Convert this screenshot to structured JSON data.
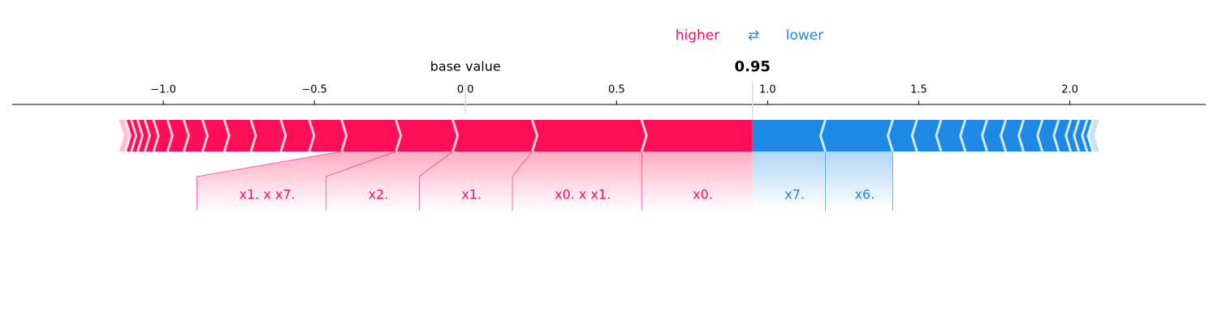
{
  "chart_data": {
    "type": "force",
    "higher_label": "higher",
    "switch_label": "⇄",
    "lower_label": "lower",
    "base_value_label": "base value",
    "base_value": 0,
    "output_value": 0.95,
    "xlim": [
      -1.5,
      2.45
    ],
    "xticks": [
      {
        "value": -1,
        "label": "−1.0"
      },
      {
        "value": -0.5,
        "label": "−0.5"
      },
      {
        "value": 0,
        "label": "0.0"
      },
      0.5,
      {
        "value": 1,
        "label": "1.0"
      },
      1.5,
      {
        "value": 2,
        "label": "2.0"
      }
    ],
    "series": [
      {
        "name": "higher",
        "color": "#ff0d57",
        "features": [
          "x0.",
          "x0. x x1.",
          "x1.",
          "x2.",
          "x1. x x7.",
          null,
          null,
          null,
          null,
          null,
          null,
          null,
          null,
          null,
          null,
          null,
          null,
          null
        ],
        "values": [
          0.367,
          0.362,
          0.263,
          0.188,
          0.18,
          0.107,
          0.094,
          0.099,
          0.088,
          0.072,
          0.062,
          0.054,
          0.046,
          0.029,
          0.024,
          0.021,
          0.019,
          0.021
        ]
      },
      {
        "name": "lower",
        "color": "#1e88e5",
        "features": [
          "x7.",
          "x6.",
          null,
          null,
          null,
          null,
          null,
          null,
          null,
          null,
          null,
          null,
          null,
          null,
          null
        ],
        "values": [
          0.241,
          0.223,
          0.08,
          0.08,
          0.08,
          0.072,
          0.062,
          0.059,
          0.062,
          0.054,
          0.04,
          0.027,
          0.027,
          0.019,
          0.021
        ]
      }
    ]
  }
}
